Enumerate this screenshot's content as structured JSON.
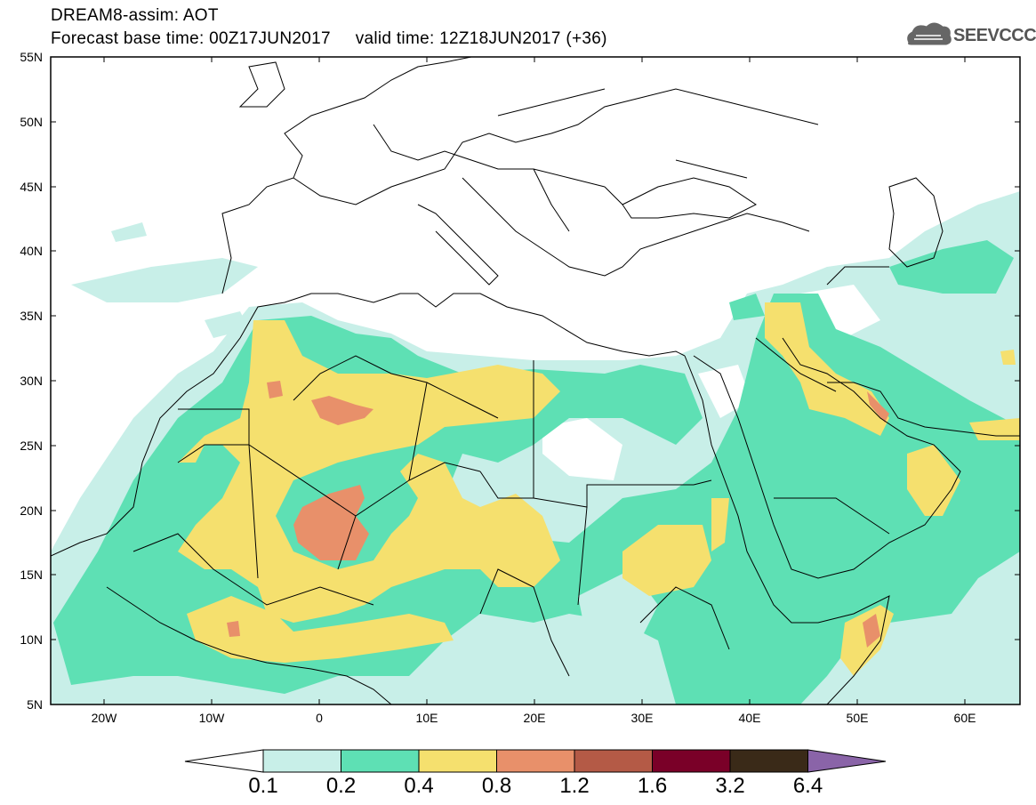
{
  "header": {
    "title_line1": "DREAM8-assim: AOT",
    "title_line2": "Forecast base time: 00Z17JUN2017     valid time: 12Z18JUN2017 (+36)",
    "logo_text": "SEEVCCC"
  },
  "map": {
    "lat_labels": [
      "55N",
      "50N",
      "45N",
      "40N",
      "35N",
      "30N",
      "25N",
      "20N",
      "15N",
      "10N",
      "5N"
    ],
    "lon_labels": [
      "20W",
      "10W",
      "0",
      "10E",
      "20E",
      "30E",
      "40E",
      "50E",
      "60E"
    ],
    "extent": {
      "lon": [
        -25,
        65
      ],
      "lat": [
        5,
        55
      ]
    },
    "field": "Aerosol Optical Thickness"
  },
  "colorbar": {
    "labels": [
      "0.1",
      "0.2",
      "0.4",
      "0.8",
      "1.2",
      "1.6",
      "3.2",
      "6.4"
    ],
    "colors": [
      "#ffffff",
      "#c8efe8",
      "#5ee0b4",
      "#f5e06e",
      "#e8906a",
      "#b45a46",
      "#7a0028",
      "#3a2a18",
      "#8a64a8"
    ]
  }
}
